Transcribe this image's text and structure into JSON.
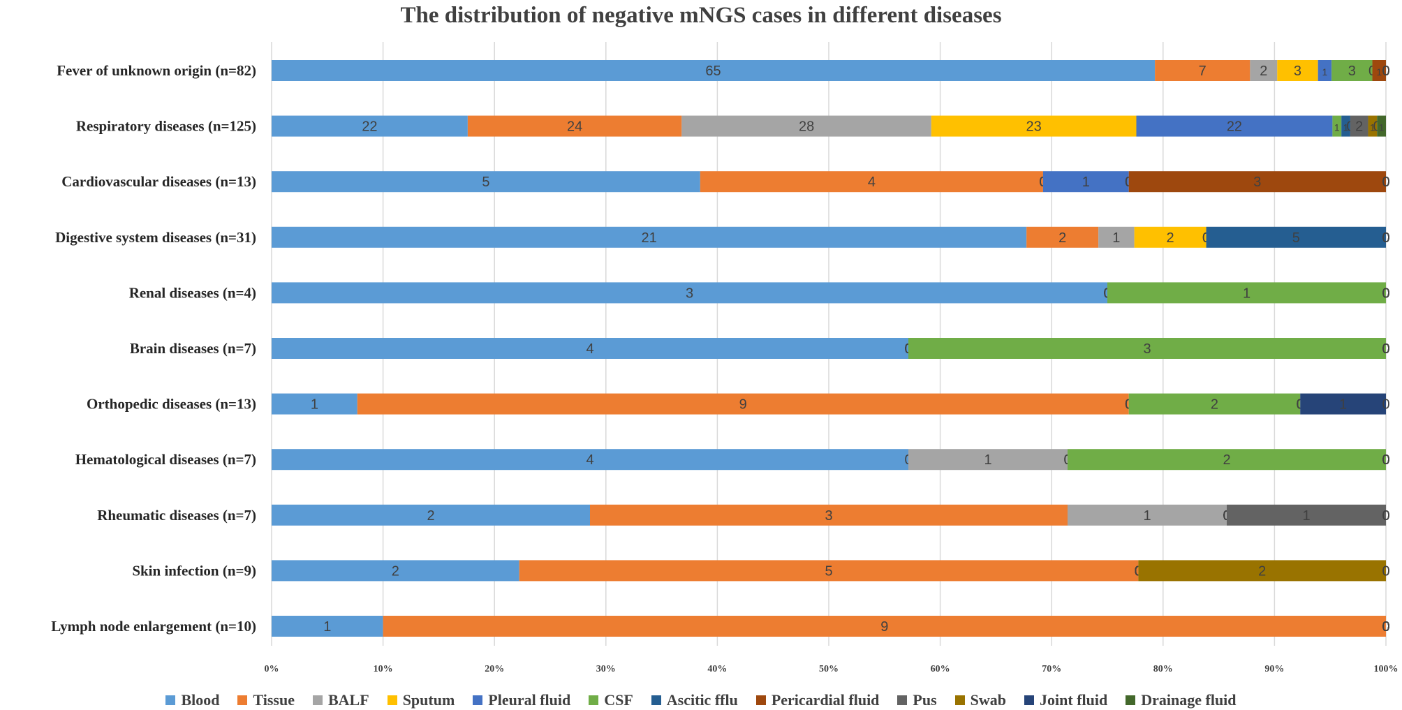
{
  "chart_data": {
    "type": "bar",
    "orientation": "horizontal",
    "stacked": "percent",
    "title": "The distribution of negative mNGS cases in different diseases",
    "xlabel": "",
    "ylabel": "",
    "xlim": [
      0,
      100
    ],
    "xticks": [
      "0%",
      "10%",
      "20%",
      "30%",
      "40%",
      "50%",
      "60%",
      "70%",
      "80%",
      "90%",
      "100%"
    ],
    "grid": true,
    "legend_position": "bottom",
    "categories": [
      "Fever of unknown origin (n=82)",
      "Respiratory diseases (n=125)",
      "Cardiovascular diseases (n=13)",
      "Digestive system diseases (n=31)",
      "Renal diseases (n=4)",
      "Brain diseases (n=7)",
      "Orthopedic diseases (n=13)",
      "Hematological diseases (n=7)",
      "Rheumatic diseases (n=7)",
      "Skin infection (n=9)",
      "Lymph node enlargement (n=10)"
    ],
    "series": [
      {
        "name": "Blood",
        "color": "#5b9bd5",
        "values": [
          65,
          22,
          5,
          21,
          3,
          4,
          1,
          4,
          2,
          2,
          1
        ]
      },
      {
        "name": "Tissue",
        "color": "#ed7d31",
        "values": [
          7,
          24,
          4,
          2,
          0,
          0,
          9,
          0,
          3,
          5,
          9
        ]
      },
      {
        "name": "BALF",
        "color": "#a5a5a5",
        "values": [
          2,
          28,
          0,
          1,
          0,
          0,
          0,
          1,
          1,
          0,
          0
        ]
      },
      {
        "name": "Sputum",
        "color": "#ffc000",
        "values": [
          3,
          23,
          0,
          2,
          0,
          0,
          0,
          0,
          0,
          0,
          0
        ]
      },
      {
        "name": "Pleural fluid",
        "color": "#4472c4",
        "values": [
          1,
          22,
          1,
          0,
          0,
          0,
          0,
          0,
          0,
          0,
          0
        ]
      },
      {
        "name": "CSF",
        "color": "#70ad47",
        "values": [
          3,
          1,
          0,
          0,
          1,
          3,
          2,
          2,
          0,
          0,
          0
        ]
      },
      {
        "name": "Ascitic fflu",
        "color": "#255e91",
        "values": [
          0,
          1,
          0,
          5,
          0,
          0,
          0,
          0,
          0,
          0,
          0
        ]
      },
      {
        "name": "Pericardial fluid",
        "color": "#9e480e",
        "values": [
          1,
          0,
          3,
          0,
          0,
          0,
          0,
          0,
          0,
          0,
          0
        ]
      },
      {
        "name": "Pus",
        "color": "#636363",
        "values": [
          0,
          2,
          0,
          0,
          0,
          0,
          0,
          0,
          1,
          0,
          0
        ]
      },
      {
        "name": "Swab",
        "color": "#997300",
        "values": [
          0,
          1,
          0,
          0,
          0,
          0,
          0,
          0,
          0,
          2,
          0
        ]
      },
      {
        "name": "Joint fluid",
        "color": "#264478",
        "values": [
          0,
          0,
          0,
          0,
          0,
          0,
          1,
          0,
          0,
          0,
          0
        ]
      },
      {
        "name": "Drainage fluid",
        "color": "#43682b",
        "values": [
          0,
          1,
          0,
          0,
          0,
          0,
          0,
          0,
          0,
          0,
          0
        ]
      }
    ]
  }
}
